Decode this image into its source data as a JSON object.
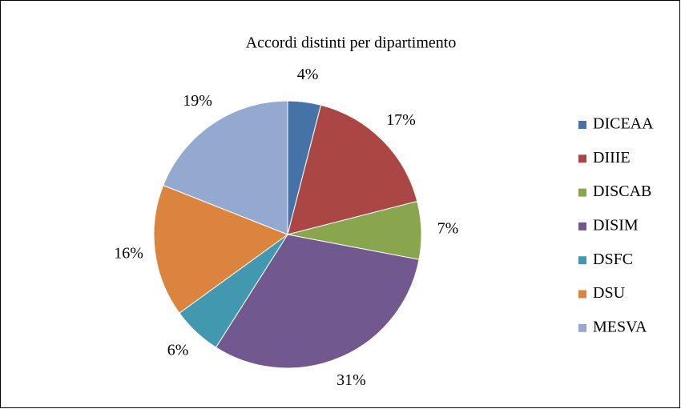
{
  "chart_data": {
    "type": "pie",
    "title": "Accordi distinti per dipartimento",
    "categories": [
      "DICEAA",
      "DIIIE",
      "DISCAB",
      "DISIM",
      "DSFC",
      "DSU",
      "MESVA"
    ],
    "values": [
      4,
      17,
      7,
      31,
      6,
      16,
      19
    ],
    "value_labels": [
      "4%",
      "17%",
      "7%",
      "31%",
      "6%",
      "16%",
      "19%"
    ],
    "colors": [
      "#4572a7",
      "#aa4643",
      "#89a54e",
      "#71588f",
      "#4198af",
      "#db843d",
      "#93a9cf"
    ],
    "legend": "right"
  }
}
